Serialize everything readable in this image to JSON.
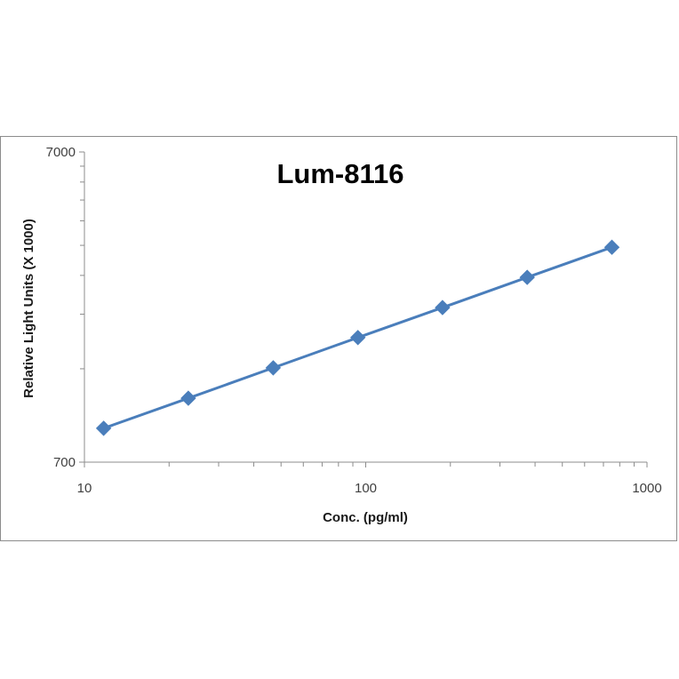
{
  "chart_data": {
    "type": "line",
    "title": "Lum-8116",
    "xlabel": "Conc. (pg/ml)",
    "ylabel": "Relative Light Units (X 1000)",
    "x_scale": "log",
    "y_scale": "log",
    "xlim": [
      10,
      1000
    ],
    "ylim": [
      700,
      7000
    ],
    "x_ticks": [
      "10",
      "100",
      "1000"
    ],
    "y_ticks": [
      "700",
      "7000"
    ],
    "grid": false,
    "marker": "diamond",
    "color": "#4a7ebb",
    "series": [
      {
        "x": [
          11.7,
          23.4,
          46.9,
          93.8,
          187.5,
          375,
          750
        ],
        "y": [
          900,
          1125,
          1410,
          1765,
          2205,
          2760,
          3450
        ]
      }
    ]
  }
}
